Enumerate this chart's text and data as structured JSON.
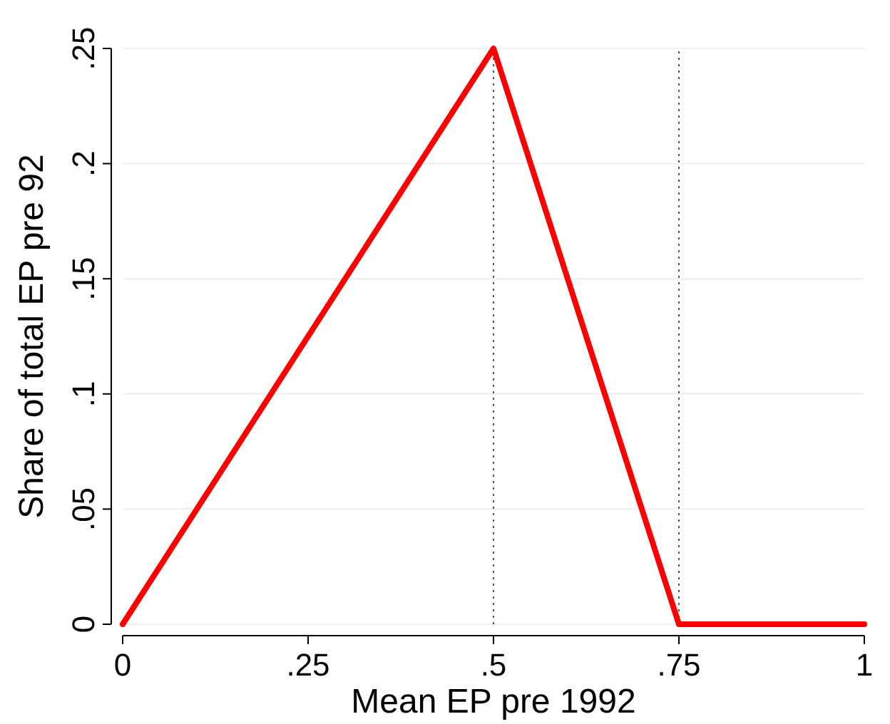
{
  "chart_data": {
    "type": "line",
    "xlabel": "Mean EP pre 1992",
    "ylabel": "Share of total EP pre 92",
    "x": [
      0,
      0.5,
      0.75,
      1
    ],
    "series": [
      {
        "color": "#ff0000",
        "values": [
          0,
          0.25,
          0,
          0
        ]
      }
    ],
    "xlim": [
      0,
      1
    ],
    "xticks": [
      {
        "value": 0,
        "label": "0"
      },
      {
        "value": 0.25,
        "label": ".25"
      },
      {
        "value": 0.5,
        "label": ".5"
      },
      {
        "value": 0.75,
        "label": ".75"
      },
      {
        "value": 1,
        "label": "1"
      }
    ],
    "ylim": [
      0,
      0.25
    ],
    "yticks": [
      {
        "value": 0,
        "label": "0"
      },
      {
        "value": 0.05,
        "label": ".05"
      },
      {
        "value": 0.1,
        "label": ".1"
      },
      {
        "value": 0.15,
        "label": ".15"
      },
      {
        "value": 0.2,
        "label": ".2"
      },
      {
        "value": 0.25,
        "label": ".25"
      }
    ],
    "grid": "y",
    "marker": "none",
    "line_style": "solid",
    "ref_lines": [
      {
        "axis": "x",
        "value": 0.5,
        "color": "#555555",
        "line_style": "dotted"
      },
      {
        "axis": "x",
        "value": 0.75,
        "color": "#555555",
        "line_style": "dotted"
      }
    ]
  }
}
